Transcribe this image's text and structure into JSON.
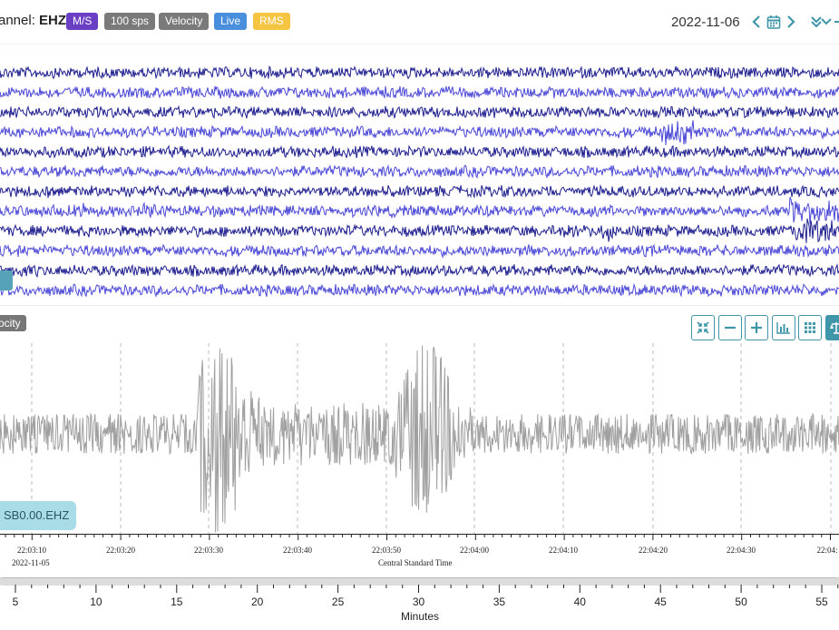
{
  "header": {
    "channel_prefix": "annel: ",
    "channel_name": "EHZ",
    "badges": [
      {
        "label": "M/S",
        "color": "#6a3fc3"
      },
      {
        "label": "100 sps",
        "color": "#7a7a7a"
      },
      {
        "label": "Velocity",
        "color": "#7a7a7a"
      },
      {
        "label": "Live",
        "color": "#4a8fde"
      },
      {
        "label": "RMS",
        "color": "#f5c542"
      }
    ],
    "date": "2022-11-06",
    "icons": [
      "chevron-left-icon",
      "calendar-icon",
      "chevron-right-icon",
      "double-chevron-down-icon"
    ]
  },
  "helicorder": {
    "colors": [
      "#1f1f8f",
      "#4b48d6"
    ],
    "rows": 12
  },
  "detail": {
    "mode_badge": "ocity",
    "toolbar": [
      "compress-icon",
      "minus-icon",
      "plus-icon",
      "bar-chart-icon",
      "grid-icon",
      "scale-icon"
    ],
    "station_label": "SB0.00.EHZ",
    "trace_color": "#a0a0a0",
    "time_ticks": [
      "22:03:10",
      "22:03:20",
      "22:03:30",
      "22:03:40",
      "22:03:50",
      "22:04:00",
      "22:04:10",
      "22:04:20",
      "22:04:30",
      "22:04:"
    ],
    "date_sub_label": "2022-11-05",
    "time_axis_title": "Central Standard Time"
  },
  "minutes_axis": {
    "ticks": [
      "5",
      "10",
      "15",
      "20",
      "25",
      "30",
      "35",
      "40",
      "45",
      "50",
      "55"
    ],
    "title": "Minutes"
  }
}
